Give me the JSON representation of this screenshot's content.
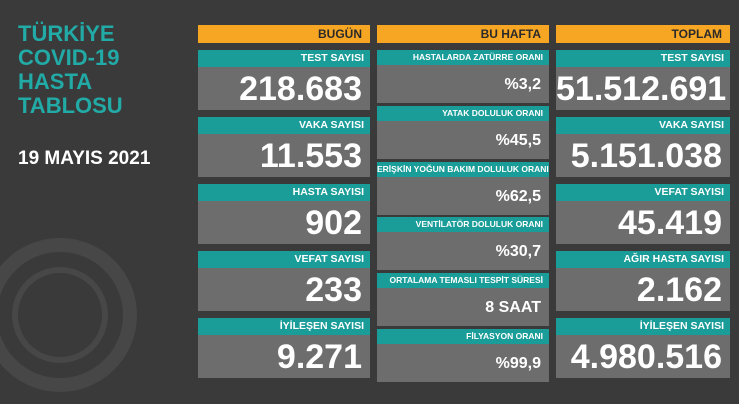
{
  "title_lines": [
    "TÜRKİYE",
    "COVID-19",
    "HASTA",
    "TABLOSU"
  ],
  "date": "19 MAYIS 2021",
  "columns": [
    {
      "header": "BUGÜN",
      "items": [
        {
          "label": "TEST SAYISI",
          "value": "218.683"
        },
        {
          "label": "VAKA SAYISI",
          "value": "11.553"
        },
        {
          "label": "HASTA SAYISI",
          "value": "902"
        },
        {
          "label": "VEFAT SAYISI",
          "value": "233"
        },
        {
          "label": "İYİLEŞEN SAYISI",
          "value": "9.271"
        }
      ]
    },
    {
      "header": "BU HAFTA",
      "items": [
        {
          "label": "HASTALARDA ZATÜRRE ORANI",
          "value": "%3,2"
        },
        {
          "label": "YATAK DOLULUK ORANI",
          "value": "%45,5"
        },
        {
          "label": "ERİŞKİN YOĞUN BAKIM DOLULUK ORANI",
          "value": "%62,5"
        },
        {
          "label": "VENTİLATÖR DOLULUK ORANI",
          "value": "%30,7"
        },
        {
          "label": "ORTALAMA TEMASLI TESPİT SÜRESİ",
          "value": "8 SAAT"
        },
        {
          "label": "FİLYASYON ORANI",
          "value": "%99,9"
        }
      ]
    },
    {
      "header": "TOPLAM",
      "items": [
        {
          "label": "TEST SAYISI",
          "value": "51.512.691"
        },
        {
          "label": "VAKA SAYISI",
          "value": "5.151.038"
        },
        {
          "label": "VEFAT SAYISI",
          "value": "45.419"
        },
        {
          "label": "AĞIR HASTA SAYISI",
          "value": "2.162"
        },
        {
          "label": "İYİLEŞEN SAYISI",
          "value": "4.980.516"
        }
      ]
    }
  ]
}
